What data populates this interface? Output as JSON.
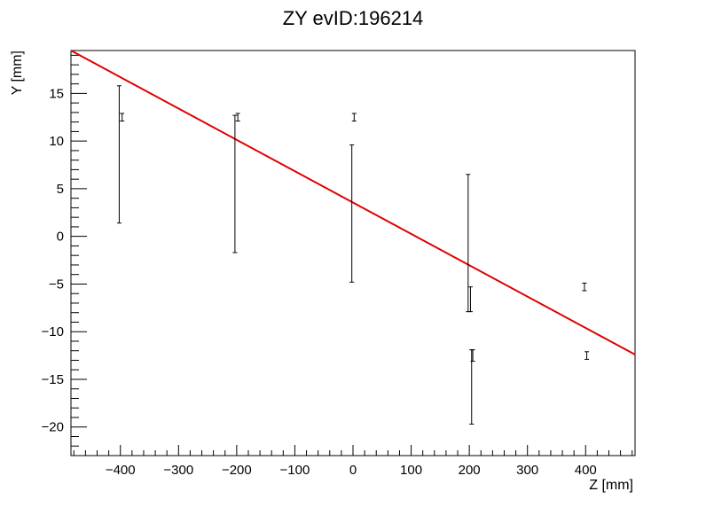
{
  "chart_data": {
    "type": "scatter",
    "title": "ZY evID:196214",
    "xlabel": "Z [mm]",
    "ylabel": "Y [mm]",
    "xlim": [
      -485,
      485
    ],
    "ylim": [
      -23,
      19.5
    ],
    "x_ticks": [
      -400,
      -300,
      -200,
      -100,
      0,
      100,
      200,
      300,
      400
    ],
    "y_ticks": [
      -20,
      -15,
      -10,
      -5,
      0,
      5,
      10,
      15
    ],
    "grid": false,
    "colors": {
      "fit_line": "#e00000",
      "points": "#000000",
      "frame": "#000000"
    },
    "points": [
      {
        "x": -402,
        "y": 8.6,
        "yerr": 7.2
      },
      {
        "x": -397,
        "y": 12.5,
        "yerr": 0.4
      },
      {
        "x": -203,
        "y": 5.5,
        "yerr": 7.2
      },
      {
        "x": -198,
        "y": 12.5,
        "yerr": 0.4
      },
      {
        "x": -2,
        "y": 2.4,
        "yerr": 7.2
      },
      {
        "x": 2,
        "y": 12.5,
        "yerr": 0.4
      },
      {
        "x": 198,
        "y": -0.7,
        "yerr": 7.2
      },
      {
        "x": 202,
        "y": -6.6,
        "yerr": 1.3
      },
      {
        "x": 204,
        "y": -15.8,
        "yerr": 3.9
      },
      {
        "x": 206,
        "y": -12.5,
        "yerr": 0.6
      },
      {
        "x": 398,
        "y": -5.3,
        "yerr": 0.4
      },
      {
        "x": 402,
        "y": -12.5,
        "yerr": 0.4
      }
    ],
    "fit_line": {
      "x1": -485,
      "y1": 19.5,
      "x2": 485,
      "y2": -12.4
    }
  }
}
